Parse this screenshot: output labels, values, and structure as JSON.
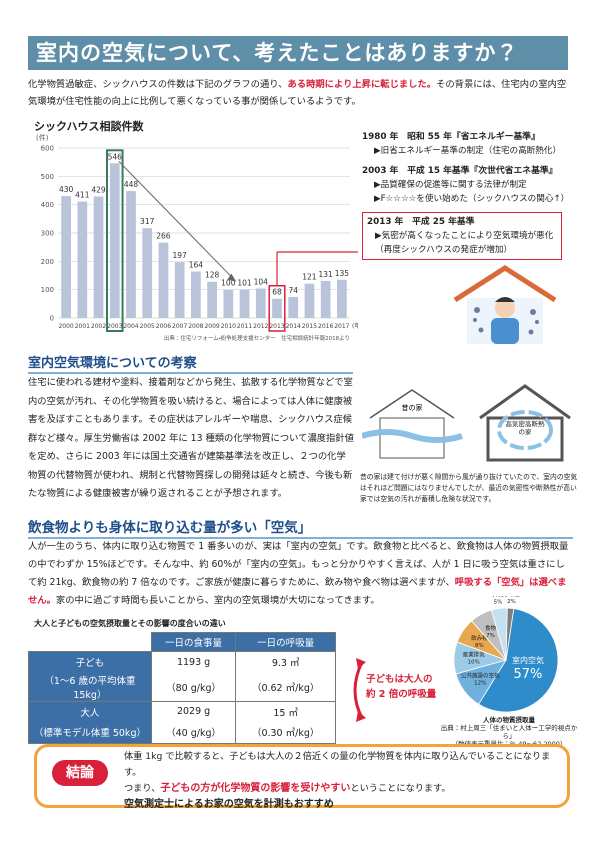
{
  "header": {
    "title": "室内の空気について、考えたことはありますか？"
  },
  "intro": [
    "化学物質過敏症、シックハウスの件数は下記のグラフの通り、",
    "ある時期により上昇に転じました。",
    "その背景には、住宅内の室内空気環境が住宅性能の向上に比例して悪くなっている事が関係しているようです。"
  ],
  "bar_chart": {
    "type": "bar",
    "title": "シックハウス相談件数",
    "y_unit": "(件)",
    "x_unit": "(年)",
    "source": "出典：住宅リフォーム・紛争処理支援センター　住宅相談統計年報2018より",
    "categories": [
      "2000",
      "2001",
      "2002",
      "2003",
      "2004",
      "2005",
      "2006",
      "2007",
      "2008",
      "2009",
      "2010",
      "2011",
      "2012",
      "2013",
      "2014",
      "2015",
      "2016",
      "2017"
    ],
    "values": [
      430,
      411,
      429,
      546,
      448,
      317,
      266,
      197,
      164,
      128,
      100,
      101,
      104,
      68,
      74,
      121,
      131,
      135
    ],
    "color": "#b9c3da",
    "ylim": [
      0,
      600
    ],
    "yticks": [
      0,
      100,
      200,
      300,
      400,
      500,
      600
    ],
    "grid": true
  },
  "timeline": [
    {
      "heading": "1980 年　昭和 55 年『省エネルギー基準』",
      "items": [
        "▶旧省エネルギー基準の制定（住宅の高断熱化）"
      ]
    },
    {
      "heading": "2003 年　平成 15 年基準『次世代省エネ基準』",
      "items": [
        "▶品質確保の促進等に関する法律が制定",
        "▶F☆☆☆☆を使い始めた（シックハウスの関心↑）"
      ]
    },
    {
      "heading": "2013 年　平成 25 年基準",
      "items": [
        "▶気密が高くなったことにより空気環境が悪化",
        "（再度シックハウスの発症が増加）"
      ]
    }
  ],
  "section1": {
    "heading": "室内空気環境についての考察",
    "body": "住宅に使われる建材や塗料、接着剤などから発生、拡散する化学物質などで室内の空気が汚れ、その化学物質を吸い続けると、場合によっては人体に健康被害を及ぼすこともあります。その症状はアレルギーや喘息、シックハウス症候群など様々。厚生労働省は 2002 年に 13 種類の化学物質について濃度指針値を定め、さらに 2003 年には国土交通省が建築基準法を改正し、２つの化学物質の代替物質が使われ、規制と代替物質探しの開発は延々と続き、今後も新たな物質による健康被害が繰り返されることが予想されます。",
    "diagram": {
      "old_house": "昔の家",
      "new_house": "高気密高断熱の家",
      "caption": "昔の家は建て付けが悪く隙間から風が通り抜けていたので、室内の空気はそれほど問題にはなりませんでしたが、最近の気密性や断熱性が高い家では空気の汚れが蓄積し危険な状況です。"
    }
  },
  "section2": {
    "heading": "飲食物よりも身体に取り込む量が多い「空気」",
    "body": [
      "人が一生のうち、体内に取り込む物質で 1 番多いのが、実は「室内の空気」です。飲食物と比べると、飲食物は人体の物質摂取量の中でわずか 15%ほどです。そんな中、約 60%が「室内の空気」。もっと分かりやすく言えば、人が 1 日に吸う空気は重さにして約 21kg、飲食物の約 7 倍なのです。ご家族が健康に暮らすために、飲み物や食べ物は選べますが、",
      "呼吸する「空気」は選べません。",
      "家の中に過ごす時間も長いことから、室内の空気環境が大切になってきます。"
    ]
  },
  "table": {
    "title": "大人と子どもの空気摂取量とその影響の度合いの違い",
    "header": [
      "一日の食事量",
      "一日の呼吸量"
    ],
    "rows": [
      [
        "子ども",
        "（1〜6 歳の平均体重 15kg）",
        "1193 g",
        "（80 g/kg）",
        "9.3 ㎥",
        "（0.62 ㎥/kg）"
      ],
      [
        "大人",
        "（標準モデル体重 50kg）",
        "2029 g",
        "（40 g/kg）",
        "15 ㎥",
        "（0.30 ㎥/kg）"
      ]
    ],
    "note": [
      "子どもは大人の",
      "約 2 倍の呼吸量"
    ]
  },
  "pie_chart": {
    "type": "pie",
    "title": "人体の物質摂取量",
    "source": [
      "出典：村上周三「住まいと人体ー工学的視点から」",
      "（数値表示重量比：% 49〜62,2000）"
    ],
    "categories": [
      "室内空気",
      "公共施設の空気",
      "産業排気",
      "飲み物",
      "食物",
      "外気",
      "その他"
    ],
    "values": [
      57,
      12,
      10,
      8,
      7,
      5,
      2
    ],
    "value_labels": [
      "57%",
      "12%",
      "10%",
      "8%",
      "7%",
      "5%",
      "2%"
    ],
    "colors": [
      "#2f8ccb",
      "#6fb0dc",
      "#9ccbe8",
      "#e9a84f",
      "#bfbfbf",
      "#c4e1f3",
      "#7f7f7f"
    ]
  },
  "conclusion": {
    "label": "結論",
    "lines": [
      "体重 1kg で比較すると、子どもは大人の２倍近くの量の化学物質を体内に取り込んでいることになります。",
      "つまり、",
      "子どもの方が化学物質の影響を受けやすい",
      "ということになります。",
      "空気測定士によるお家の空気を計測もおすすめ"
    ]
  }
}
